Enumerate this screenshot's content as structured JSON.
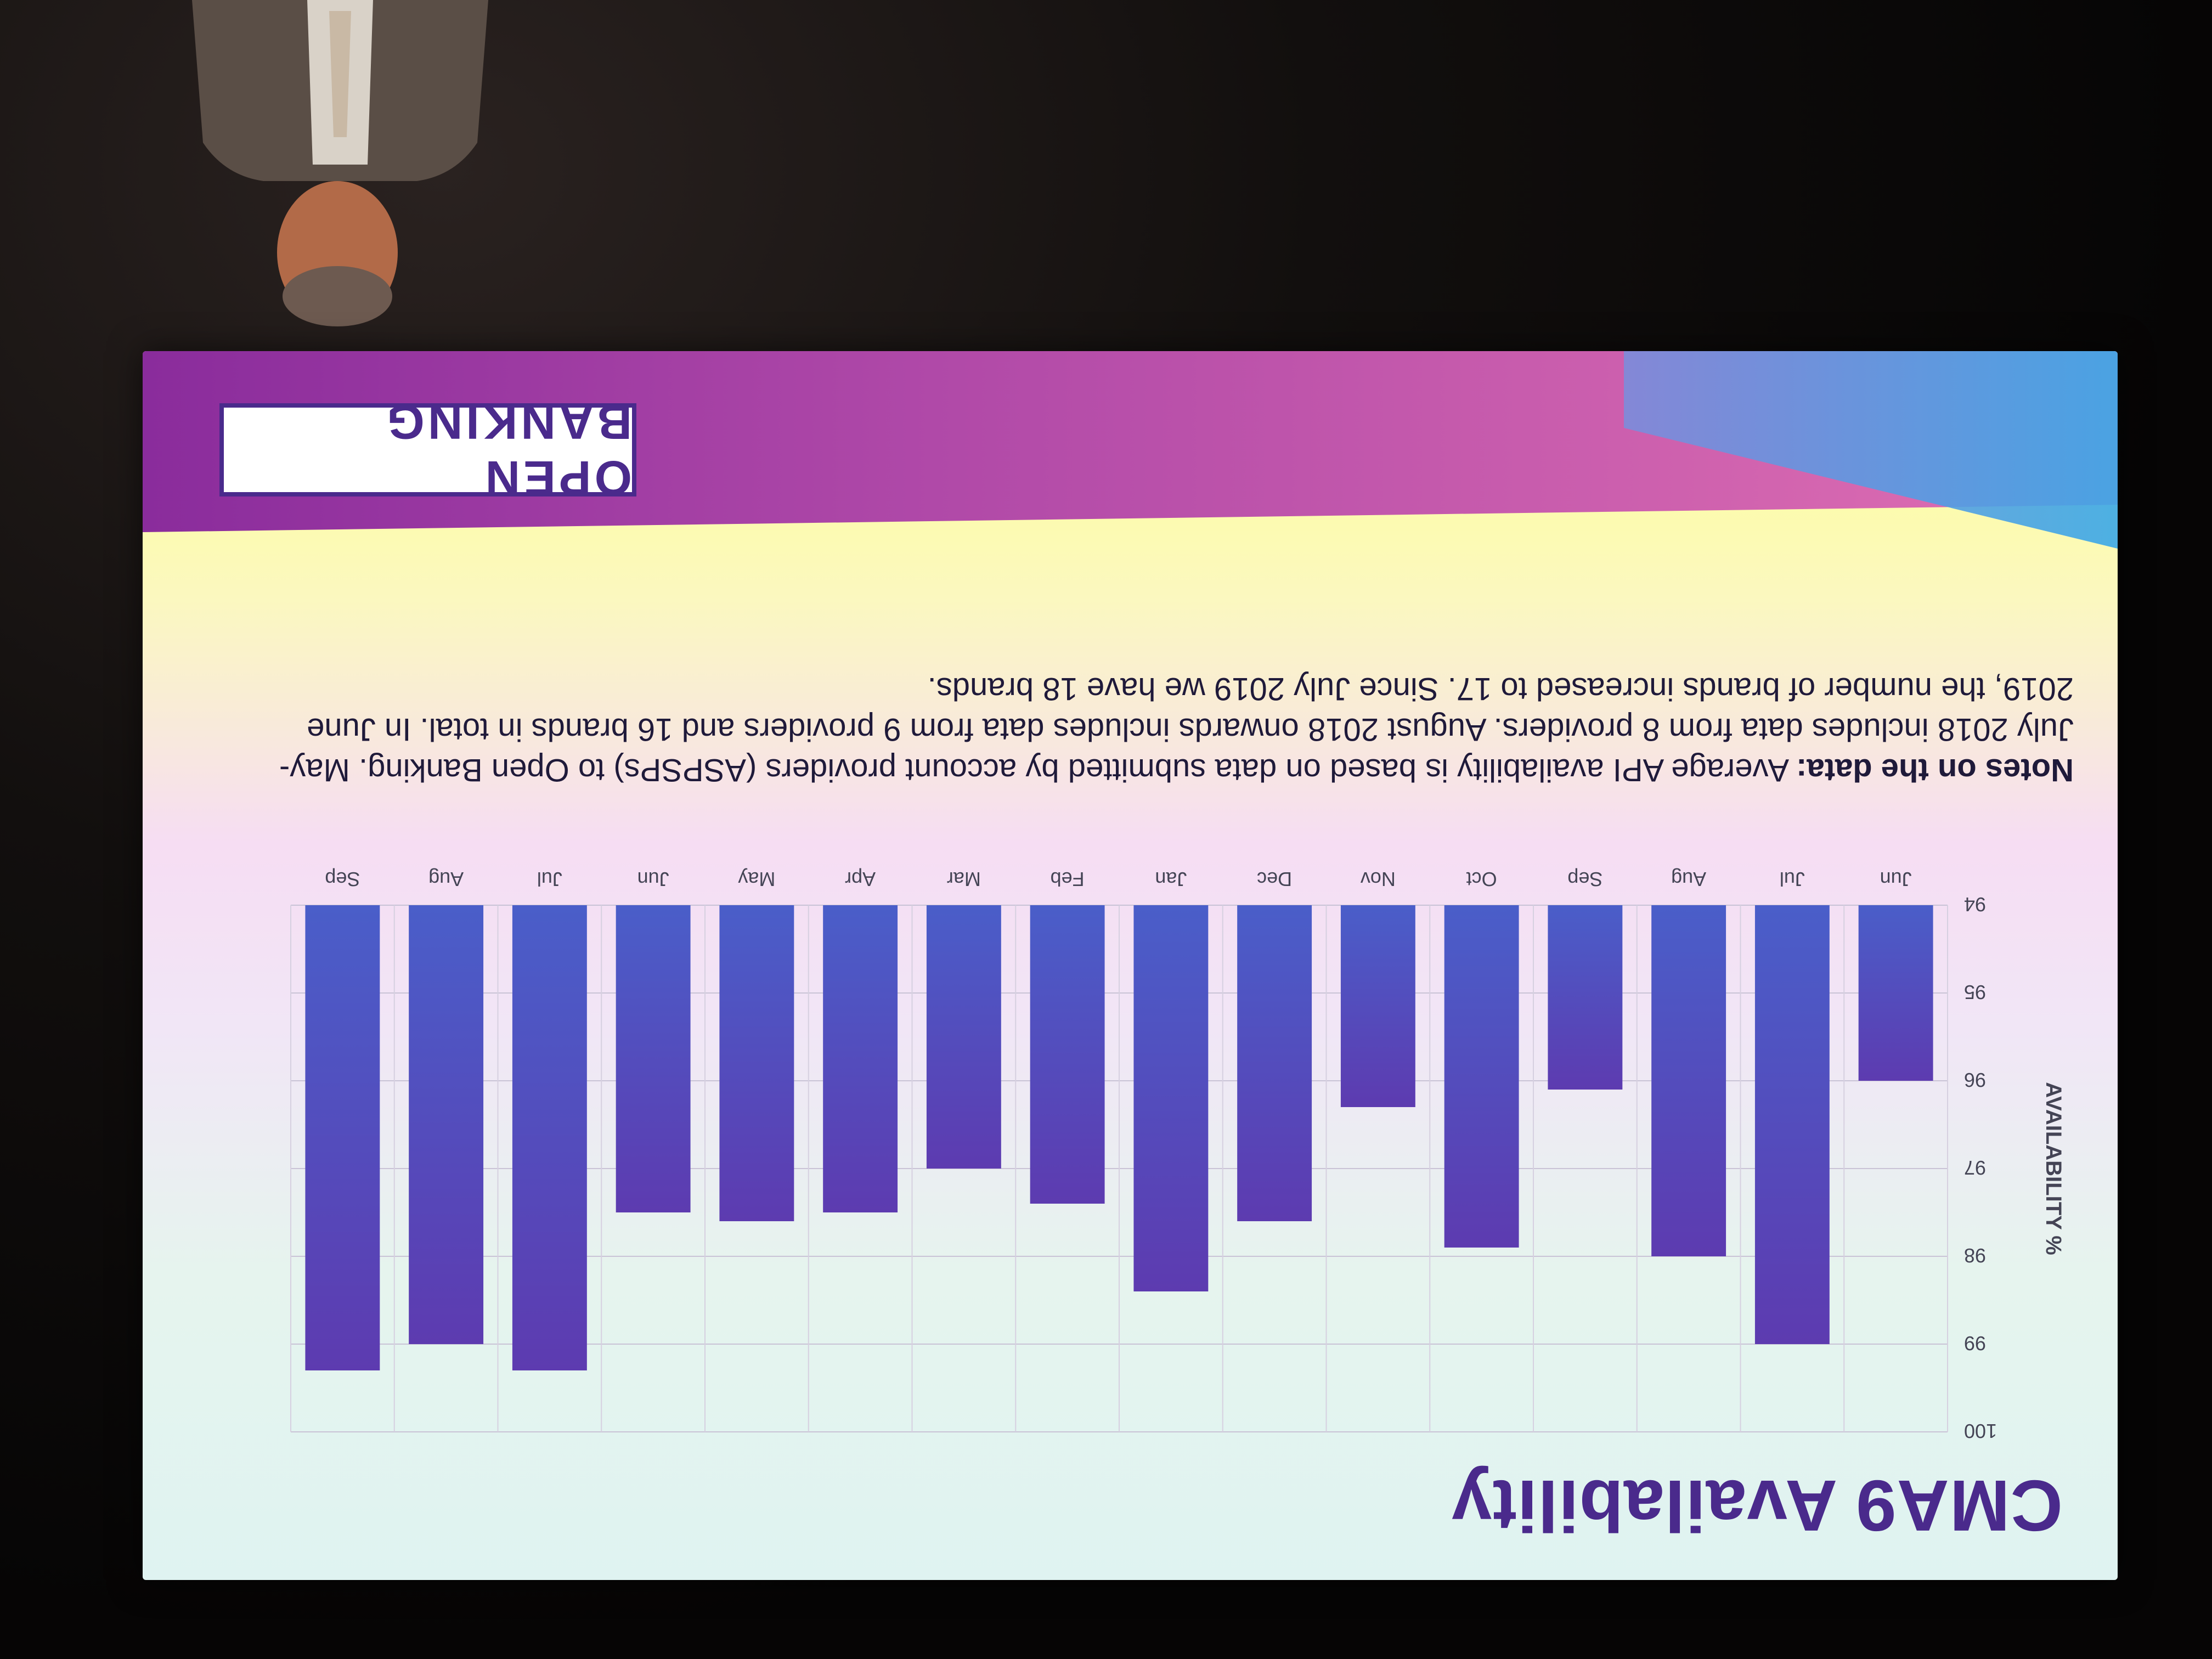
{
  "slide": {
    "title": "CMA9 Availability",
    "notes_label": "Notes on the data:",
    "notes_text": " Average API availability is based on data submitted by account providers (ASPSPs) to Open Banking. May-July 2018 includes data from 8 providers. August 2018 onwards includes data from 9 providers and 16 brands in total. In June 2019, the number of brands increased to 17. Since July 2019 we have 18 brands.",
    "logo": "OPEN BANKING"
  },
  "chart_data": {
    "type": "bar",
    "title": "CMA9 Availability",
    "xlabel": "",
    "ylabel": "AVAILABILITY %",
    "categories": [
      "Jun",
      "Jul",
      "Aug",
      "Sep",
      "Oct",
      "Nov",
      "Dec",
      "Jan",
      "Feb",
      "Mar",
      "Apr",
      "May",
      "Jun",
      "Jul",
      "Aug",
      "Sep"
    ],
    "values": [
      96.0,
      99.0,
      98.0,
      96.1,
      97.9,
      96.3,
      97.6,
      98.4,
      97.4,
      97.0,
      97.5,
      97.6,
      97.5,
      99.3,
      99.0,
      99.3
    ],
    "ylim": [
      94,
      100
    ],
    "yticks": [
      94,
      95,
      96,
      97,
      98,
      99,
      100
    ],
    "grid": true,
    "colors": {
      "bar_top": "#5d3bb0",
      "bar_bottom": "#4a5ec9"
    }
  }
}
